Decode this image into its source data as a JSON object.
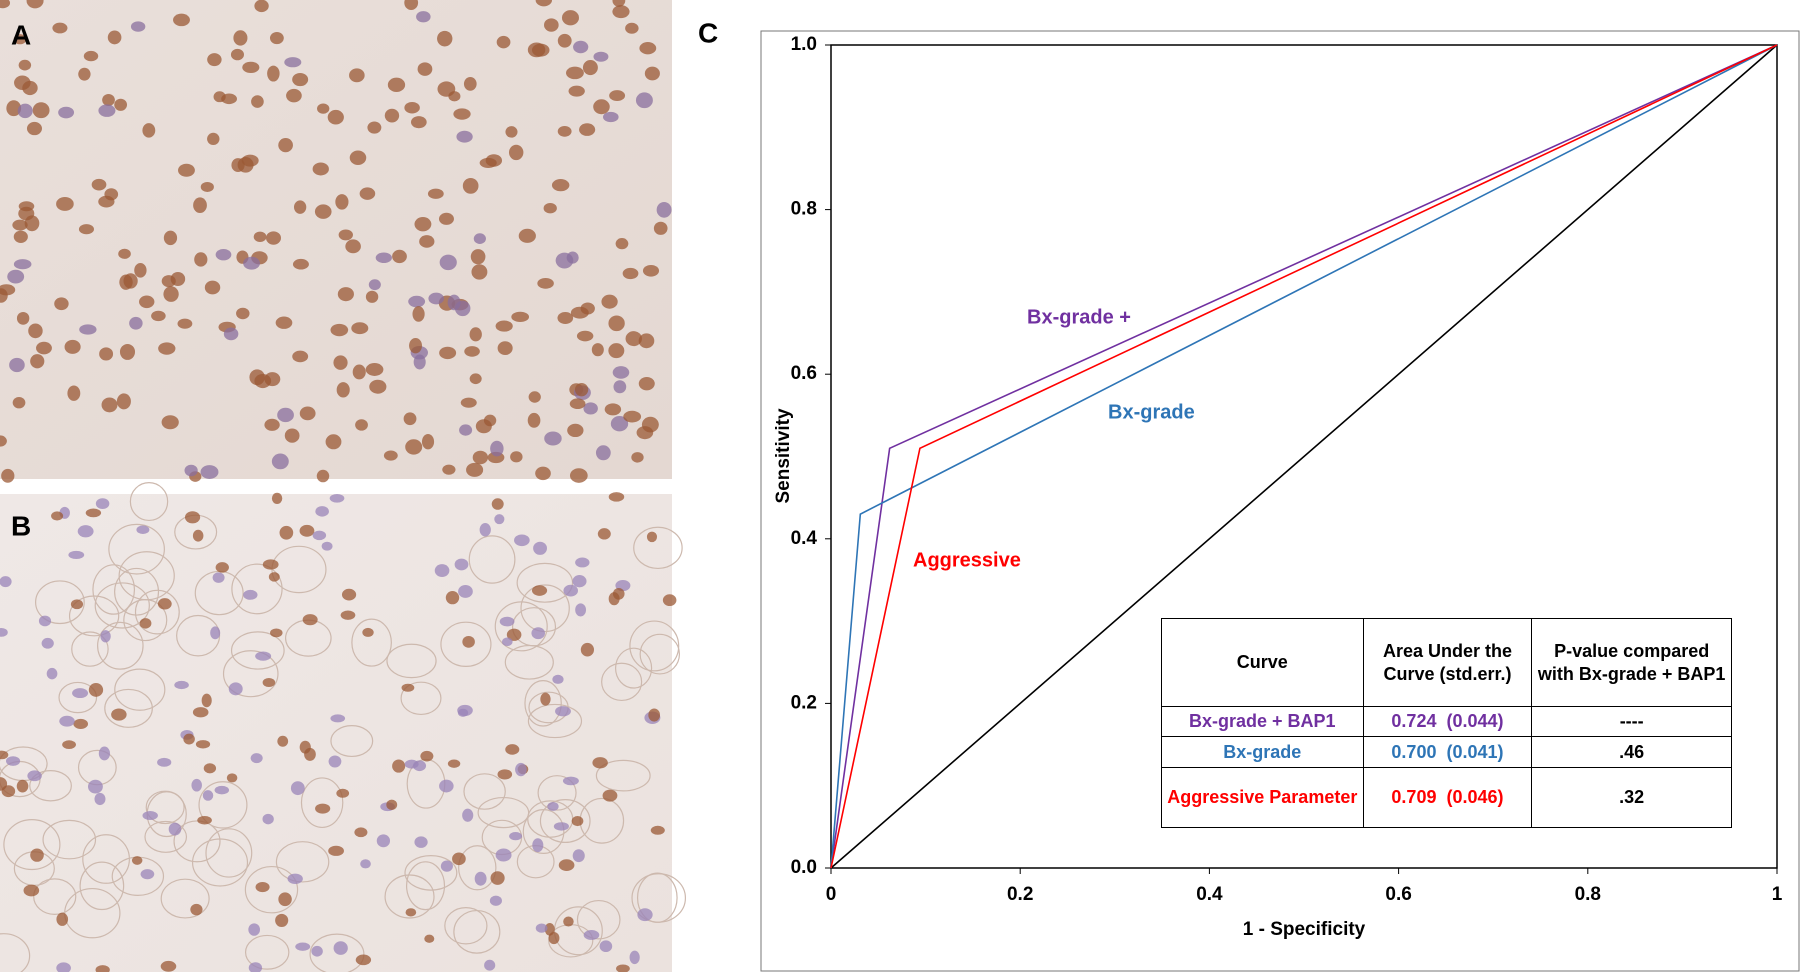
{
  "panels": {
    "a": "A",
    "b": "B",
    "c": "C"
  },
  "chart_data": {
    "type": "line",
    "xlabel": "1 - Specificity",
    "ylabel": "Sensitivity",
    "xlim": [
      0,
      1
    ],
    "ylim": [
      0,
      1
    ],
    "xticks": [
      0,
      0.2,
      0.4,
      0.6,
      0.8,
      1
    ],
    "yticks": [
      {
        "value": 0,
        "label": "0.0"
      },
      0.2,
      0.4,
      0.6,
      0.8,
      {
        "value": 1,
        "label": "1.0"
      }
    ],
    "reference_line": {
      "x": [
        0,
        1
      ],
      "y": [
        0,
        1
      ],
      "color": "#000000"
    },
    "series": [
      {
        "name": "Bx-grade +",
        "color": "#7030a0",
        "x": [
          0,
          0.062,
          1
        ],
        "y": [
          0,
          0.51,
          1
        ]
      },
      {
        "name": "Bx-grade",
        "color": "#2e75b6",
        "x": [
          0,
          0.031,
          1
        ],
        "y": [
          0,
          0.43,
          1
        ]
      },
      {
        "name": "Aggressive",
        "color": "#ff0000",
        "x": [
          0,
          0.094,
          1
        ],
        "y": [
          0,
          0.51,
          1
        ]
      }
    ],
    "table": {
      "header": [
        "Curve",
        "Area Under the Curve  (std.err.)",
        "P-value compared with Bx-grade + BAP1"
      ],
      "rows": [
        [
          "Bx-grade + BAP1",
          "0.724",
          "(0.044)",
          "----"
        ],
        [
          "Bx-grade",
          "0.700",
          "(0.041)",
          ".46"
        ],
        [
          "Aggressive Parameter",
          "0.709",
          "(0.046)",
          ".32"
        ]
      ]
    }
  }
}
